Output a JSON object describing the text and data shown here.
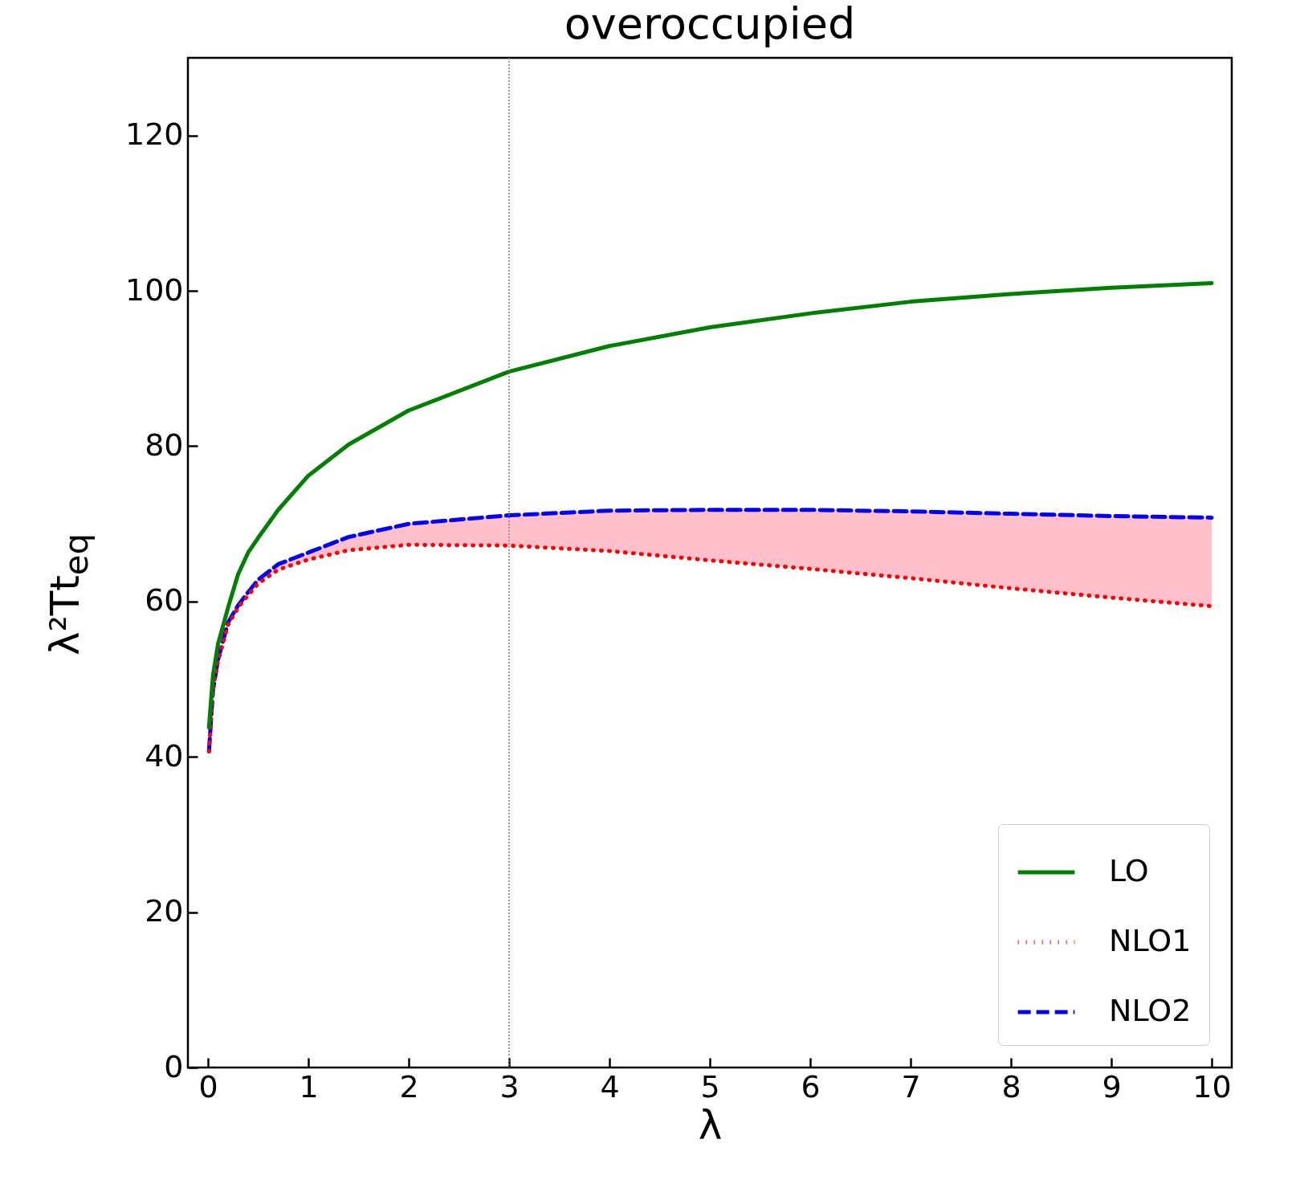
{
  "chart_data": {
    "type": "line",
    "title": "overoccupied",
    "xlabel": "λ",
    "ylabel": "λ²Tt$_{eq}$",
    "x": [
      0.01,
      0.05,
      0.1,
      0.2,
      0.3,
      0.4,
      0.5,
      0.7,
      1,
      1.4,
      2,
      3,
      4,
      5,
      6,
      7,
      8,
      9,
      10
    ],
    "series": [
      {
        "name": "LO",
        "color": "#008000",
        "line_style": "solid",
        "values": [
          43.8,
          50.5,
          54.5,
          59.2,
          63.5,
          66.3,
          68.2,
          71.8,
          76.2,
          80.2,
          84.6,
          89.6,
          92.9,
          95.3,
          97.1,
          98.6,
          99.6,
          100.4,
          101.0
        ]
      },
      {
        "name": "NLO1",
        "color": "#ff0000",
        "line_style": "dotted",
        "values": [
          40.7,
          48.6,
          52.3,
          57.0,
          59.2,
          60.8,
          62.3,
          64.1,
          65.4,
          66.6,
          67.3,
          67.2,
          66.5,
          65.3,
          64.2,
          63.0,
          61.7,
          60.5,
          59.4
        ]
      },
      {
        "name": "NLO2",
        "color": "#0000ff",
        "line_style": "dashed",
        "values": [
          40.7,
          48.6,
          52.5,
          57.3,
          59.5,
          61.2,
          62.8,
          64.8,
          66.3,
          68.3,
          70.0,
          71.1,
          71.7,
          71.8,
          71.8,
          71.6,
          71.3,
          71.0,
          70.8
        ],
        "lower": [
          40.7,
          48.6,
          52.3,
          57.0,
          59.2,
          60.8,
          62.3,
          64.1,
          65.4,
          66.6,
          67.3,
          67.2,
          66.5,
          65.3,
          64.2,
          63.0,
          61.7,
          60.5,
          59.4
        ],
        "upper": [
          40.7,
          48.6,
          52.5,
          57.3,
          59.5,
          61.2,
          62.8,
          64.8,
          66.3,
          68.3,
          70.0,
          71.1,
          71.7,
          71.8,
          71.8,
          71.6,
          71.3,
          71.0,
          70.8
        ]
      }
    ],
    "xlim": [
      -0.2,
      10.2
    ],
    "ylim": [
      0,
      130
    ],
    "xticks": [
      0,
      1,
      2,
      3,
      4,
      5,
      6,
      7,
      8,
      9,
      10
    ],
    "yticks": [
      0,
      20,
      40,
      60,
      80,
      100,
      120
    ],
    "ref_lines": [
      {
        "axis": "x",
        "value": 3,
        "color": "#808080",
        "line_style": "dotted"
      }
    ],
    "grid": false,
    "legend": "bottom right"
  }
}
